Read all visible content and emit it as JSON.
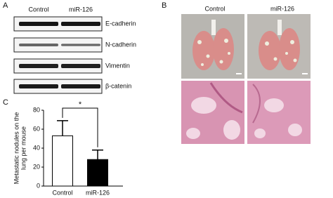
{
  "panel_a": {
    "label": "A",
    "columns": [
      "Control",
      "miR-126"
    ],
    "rows": [
      "E-cadherin",
      "N-cadherin",
      "Vimentin",
      "β-catenin"
    ]
  },
  "panel_b": {
    "label": "B",
    "columns": [
      "Control",
      "miR-126"
    ]
  },
  "chart_data": {
    "type": "bar",
    "panel_label": "C",
    "ylabel": [
      "Metastatic nodules on the",
      "lung per mouse"
    ],
    "categories": [
      "Control",
      "miR-126"
    ],
    "values": [
      53,
      28
    ],
    "errors": [
      16,
      10
    ],
    "colors": [
      "#ffffff",
      "#000000"
    ],
    "ylim": [
      0,
      80
    ],
    "yticks": [
      0,
      20,
      40,
      60,
      80
    ],
    "annotation": "*"
  }
}
